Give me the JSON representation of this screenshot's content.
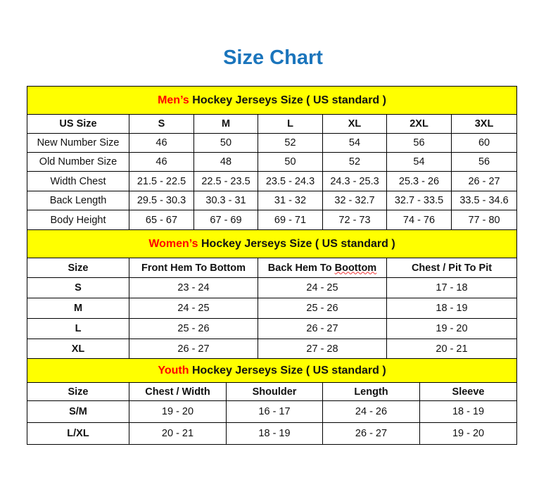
{
  "title": "Size Chart",
  "colors": {
    "title": "#1b75bc",
    "header_bg": "#ffff00",
    "accent": "#ff0000"
  },
  "mens": {
    "header_accent": "Men’s",
    "header_rest": "Hockey Jerseys Size ( US standard )",
    "columns": [
      "US Size",
      "S",
      "M",
      "L",
      "XL",
      "2XL",
      "3XL"
    ],
    "rows": [
      [
        "New Number Size",
        "46",
        "50",
        "52",
        "54",
        "56",
        "60"
      ],
      [
        "Old Number Size",
        "46",
        "48",
        "50",
        "52",
        "54",
        "56"
      ],
      [
        "Width Chest",
        "21.5 - 22.5",
        "22.5 - 23.5",
        "23.5 - 24.3",
        "24.3 - 25.3",
        "25.3 - 26",
        "26 - 27"
      ],
      [
        "Back Length",
        "29.5 - 30.3",
        "30.3 - 31",
        "31 - 32",
        "32 - 32.7",
        "32.7 - 33.5",
        "33.5 - 34.6"
      ],
      [
        "Body Height",
        "65 - 67",
        "67 - 69",
        "69 - 71",
        "72 - 73",
        "74 - 76",
        "77 - 80"
      ]
    ]
  },
  "womens": {
    "header_accent": "Women’s",
    "header_rest": "Hockey Jerseys Size ( US standard )",
    "columns": [
      "Size",
      "Front Hem To Bottom",
      "Back Hem To Boottom",
      "Chest / Pit To Pit"
    ],
    "rows": [
      [
        "S",
        "23 - 24",
        "24 - 25",
        "17 - 18"
      ],
      [
        "M",
        "24 - 25",
        "25 - 26",
        "18 - 19"
      ],
      [
        "L",
        "25 - 26",
        "26 - 27",
        "19 - 20"
      ],
      [
        "XL",
        "26 - 27",
        "27 - 28",
        "20 - 21"
      ]
    ]
  },
  "youth": {
    "header_accent": "Youth",
    "header_rest": "Hockey Jerseys Size ( US standard )",
    "columns": [
      "Size",
      "Chest / Width",
      "Shoulder",
      "Length",
      "Sleeve"
    ],
    "rows": [
      [
        "S/M",
        "19 - 20",
        "16 - 17",
        "24 - 26",
        "18 - 19"
      ],
      [
        "L/XL",
        "20 - 21",
        "18 - 19",
        "26 - 27",
        "19 - 20"
      ]
    ]
  }
}
